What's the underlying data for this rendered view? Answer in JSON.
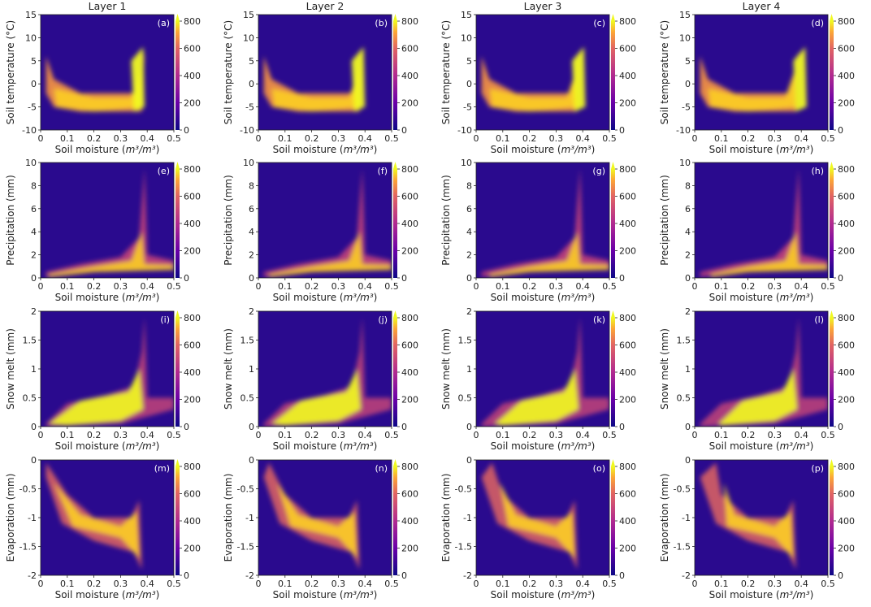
{
  "chart_data": {
    "type": "heatmap",
    "columns": [
      "Layer 1",
      "Layer 2",
      "Layer 3",
      "Layer 4"
    ],
    "colormap": "plasma",
    "colorbar": {
      "range": [
        0,
        800
      ],
      "ticks": [
        "0",
        "200",
        "400",
        "600",
        "800"
      ],
      "extend": "max"
    },
    "x": {
      "label_text": "Soil moisture (",
      "label_unit": "m³/m³",
      "label_close": ")",
      "range": [
        0,
        0.5
      ],
      "ticks": [
        "0",
        "0.1",
        "0.2",
        "0.3",
        "0.4",
        "0.5"
      ]
    },
    "rows": [
      {
        "ylabel": "Soil temperature (°C)",
        "ylim": [
          -10,
          15
        ],
        "yticks": [
          "-10",
          "-5",
          "0",
          "5",
          "10",
          "15"
        ],
        "panels": [
          "(a)",
          "(b)",
          "(c)",
          "(d)"
        ]
      },
      {
        "ylabel": "Precipitation (mm)",
        "ylim": [
          0,
          10
        ],
        "yticks": [
          "0",
          "2",
          "4",
          "6",
          "8",
          "10"
        ],
        "panels": [
          "(e)",
          "(f)",
          "(g)",
          "(h)"
        ]
      },
      {
        "ylabel": "Snow melt (mm)",
        "ylim": [
          0,
          2
        ],
        "yticks": [
          "0",
          "0.5",
          "1",
          "1.5",
          "2"
        ],
        "panels": [
          "(i)",
          "(j)",
          "(k)",
          "(l)"
        ]
      },
      {
        "ylabel": "Evaporation (mm)",
        "ylim": [
          -2,
          0
        ],
        "yticks": [
          "-2",
          "-1.5",
          "-1",
          "-0.5",
          "0"
        ],
        "panels": [
          "(m)",
          "(n)",
          "(o)",
          "(p)"
        ]
      }
    ]
  }
}
